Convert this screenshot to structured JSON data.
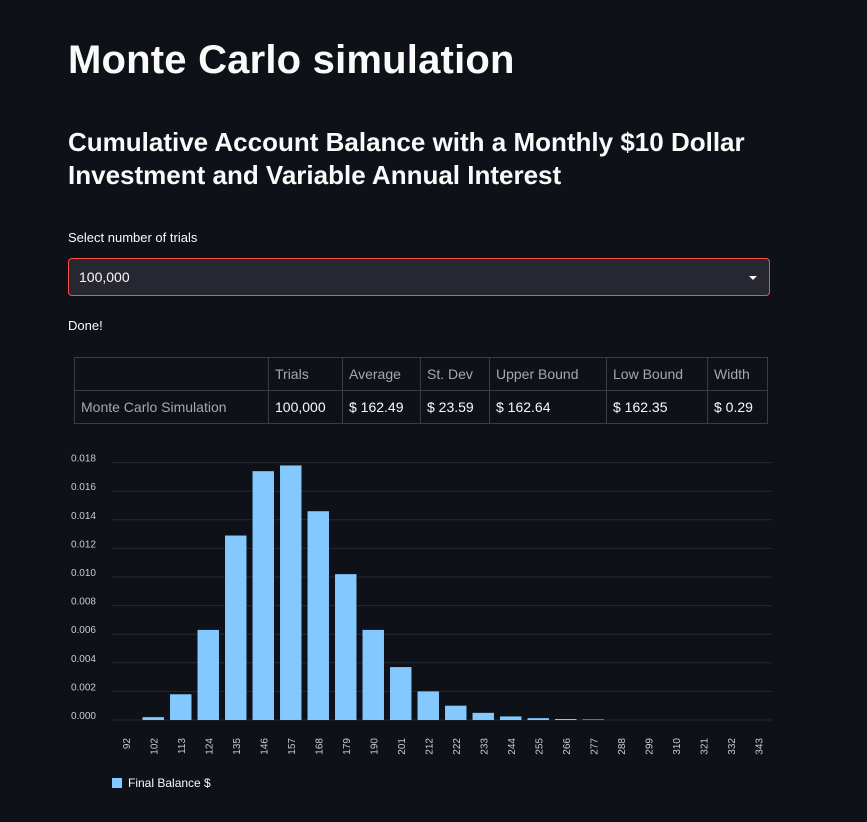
{
  "page": {
    "title": "Monte Carlo simulation",
    "subtitle": "Cumulative Account Balance with a Monthly $10 Dollar Investment and Variable Annual Interest"
  },
  "selector": {
    "label": "Select number of trials",
    "value": "100,000",
    "icon": "chevron-down-icon"
  },
  "status": "Done!",
  "results_table": {
    "headers": [
      "",
      "Trials",
      "Average",
      "St. Dev",
      "Upper Bound",
      "Low Bound",
      "Width"
    ],
    "rows": [
      [
        "Monte Carlo Simulation",
        "100,000",
        "$ 162.49",
        "$ 23.59",
        "$ 162.64",
        "$ 162.35",
        "$ 0.29"
      ]
    ]
  },
  "colors": {
    "background": "#0e1117",
    "bar": "#83c9ff",
    "accent_border": "#ff4b4b",
    "grid": "#262a31"
  },
  "chart_data": {
    "type": "bar",
    "categories": [
      "92",
      "102",
      "113",
      "124",
      "135",
      "146",
      "157",
      "168",
      "179",
      "190",
      "201",
      "212",
      "222",
      "233",
      "244",
      "255",
      "266",
      "277",
      "288",
      "299",
      "310",
      "321",
      "332",
      "343"
    ],
    "series": [
      {
        "name": "Final Balance $",
        "values": [
          0.0,
          0.0002,
          0.0018,
          0.0063,
          0.0129,
          0.0174,
          0.0178,
          0.0146,
          0.0102,
          0.0063,
          0.0037,
          0.002,
          0.001,
          0.0005,
          0.00025,
          0.00013,
          7e-05,
          4e-05,
          2e-05,
          1e-05,
          5e-06,
          0.0,
          0.0,
          0.0
        ]
      }
    ],
    "y_ticks": [
      "0.000",
      "0.002",
      "0.004",
      "0.006",
      "0.008",
      "0.010",
      "0.012",
      "0.014",
      "0.016",
      "0.018"
    ],
    "ylim": [
      0,
      0.018
    ],
    "grid": true,
    "legend_position": "bottom-left"
  }
}
